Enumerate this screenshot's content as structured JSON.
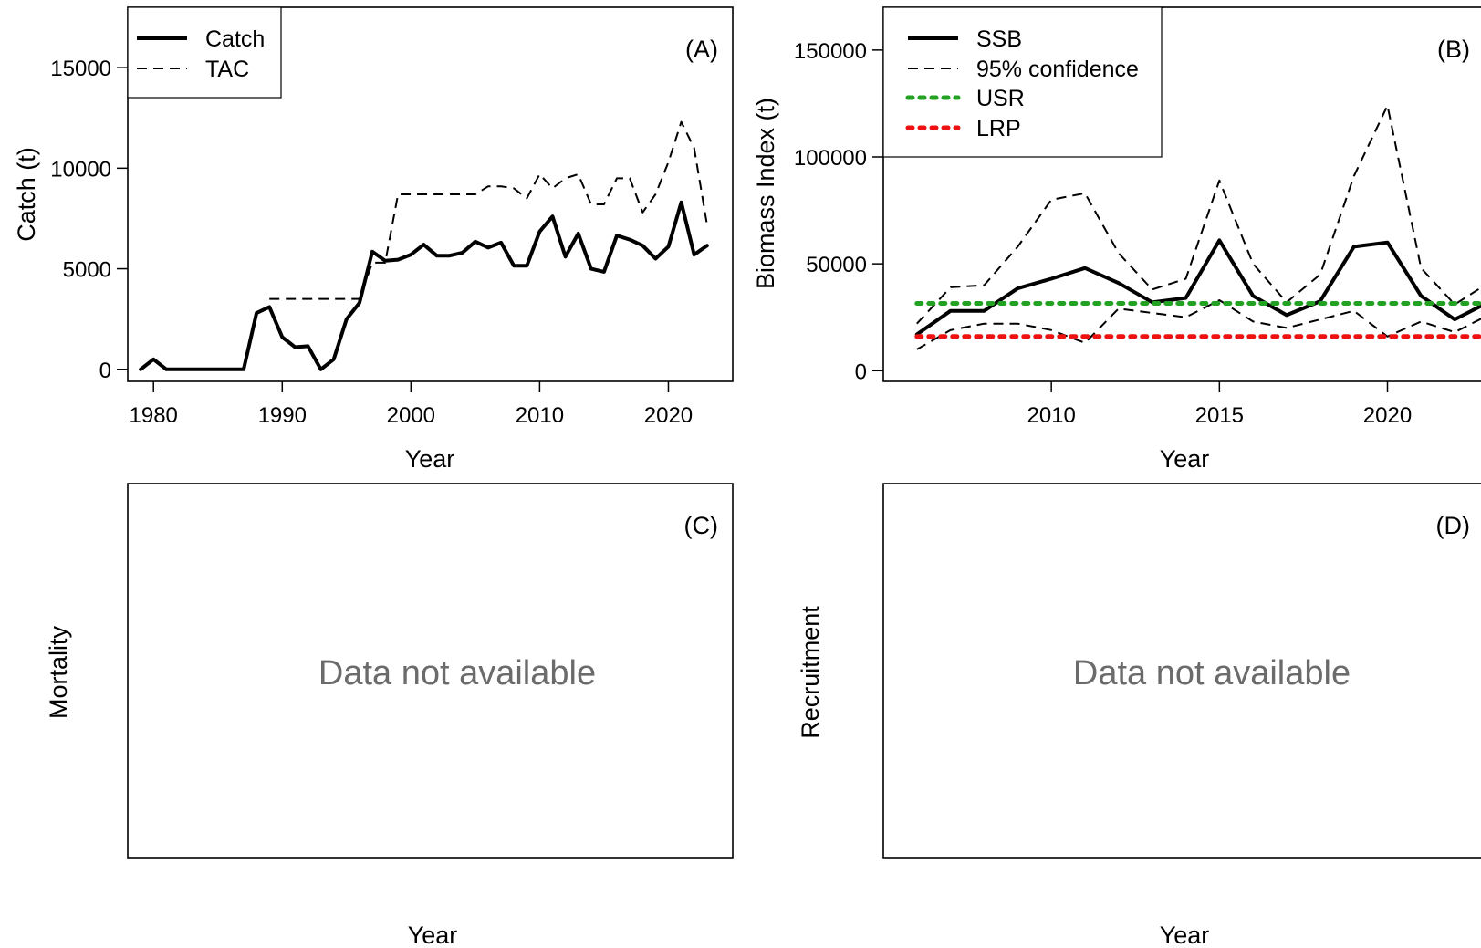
{
  "chart_data": [
    {
      "panel": "(A)",
      "type": "line",
      "xlabel": "Year",
      "ylabel": "Catch (t)",
      "xlim": [
        1978,
        2025
      ],
      "ylim": [
        -600,
        18000
      ],
      "xticks": [
        1980,
        1990,
        2000,
        2010,
        2020
      ],
      "yticks": [
        0,
        5000,
        10000,
        15000
      ],
      "legend": {
        "placement": "top-left",
        "entries": [
          "Catch",
          "TAC"
        ]
      },
      "series": [
        {
          "name": "Catch",
          "style": "solid",
          "color": "#000000",
          "x": [
            1979,
            1980,
            1981,
            1982,
            1983,
            1984,
            1985,
            1986,
            1987,
            1988,
            1989,
            1990,
            1991,
            1992,
            1993,
            1994,
            1995,
            1996,
            1997,
            1998,
            1999,
            2000,
            2001,
            2002,
            2003,
            2004,
            2005,
            2006,
            2007,
            2008,
            2009,
            2010,
            2011,
            2012,
            2013,
            2014,
            2015,
            2016,
            2017,
            2018,
            2019,
            2020,
            2021,
            2022,
            2023
          ],
          "values": [
            0,
            500,
            0,
            0,
            0,
            0,
            0,
            0,
            0,
            2800,
            3100,
            1600,
            1100,
            1150,
            0,
            500,
            2500,
            3300,
            5850,
            5400,
            5450,
            5700,
            6200,
            5650,
            5650,
            5800,
            6350,
            6050,
            6300,
            5150,
            5150,
            6850,
            7600,
            5600,
            6750,
            5000,
            4850,
            6650,
            6450,
            6150,
            5500,
            6100,
            8300,
            5700,
            6150
          ]
        },
        {
          "name": "TAC",
          "style": "dashed",
          "color": "#000000",
          "x": [
            1989,
            1990,
            1991,
            1992,
            1993,
            1994,
            1995,
            1996,
            1997,
            1998,
            1999,
            2000,
            2001,
            2002,
            2003,
            2004,
            2005,
            2006,
            2007,
            2008,
            2009,
            2010,
            2011,
            2012,
            2013,
            2014,
            2015,
            2016,
            2017,
            2018,
            2019,
            2020,
            2021,
            2022,
            2023
          ],
          "values": [
            3500,
            3500,
            3500,
            3500,
            3500,
            3500,
            3500,
            3500,
            5300,
            5300,
            8700,
            8700,
            8700,
            8700,
            8700,
            8700,
            8700,
            9100,
            9100,
            9000,
            8500,
            9700,
            9000,
            9500,
            9700,
            8200,
            8200,
            9500,
            9500,
            7800,
            8700,
            10300,
            12300,
            11000,
            7200
          ]
        }
      ]
    },
    {
      "panel": "(B)",
      "type": "line",
      "xlabel": "Year",
      "ylabel": "Biomass Index (t)",
      "xlim": [
        2005,
        2023
      ],
      "ylim": [
        -5000,
        170000
      ],
      "xticks": [
        2010,
        2015,
        2020
      ],
      "yticks": [
        0,
        50000,
        100000,
        150000
      ],
      "legend": {
        "placement": "top-left",
        "entries": [
          "SSB",
          "95% confidence",
          "USR",
          "LRP"
        ]
      },
      "series": [
        {
          "name": "SSB",
          "style": "solid",
          "color": "#000000",
          "x": [
            2006,
            2007,
            2008,
            2009,
            2010,
            2011,
            2012,
            2013,
            2014,
            2015,
            2016,
            2017,
            2018,
            2019,
            2020,
            2021,
            2022,
            2023
          ],
          "values": [
            17000,
            28000,
            28000,
            38500,
            43000,
            48000,
            41000,
            32000,
            34000,
            61000,
            35000,
            26000,
            32500,
            58000,
            60000,
            35000,
            24000,
            32000
          ]
        },
        {
          "name": "95% confidence",
          "style": "dashed",
          "color": "#000000",
          "x": [
            2006,
            2007,
            2008,
            2009,
            2010,
            2011,
            2012,
            2013,
            2014,
            2015,
            2016,
            2017,
            2018,
            2019,
            2020,
            2021,
            2022,
            2023
          ],
          "values": [
            22000,
            39000,
            40000,
            58000,
            80000,
            83000,
            55000,
            38000,
            43000,
            89000,
            50000,
            32000,
            45000,
            91000,
            124000,
            48000,
            31000,
            41000
          ]
        },
        {
          "name": "95% confidence",
          "style": "dashed",
          "color": "#000000",
          "x": [
            2006,
            2007,
            2008,
            2009,
            2010,
            2011,
            2012,
            2013,
            2014,
            2015,
            2016,
            2017,
            2018,
            2019,
            2020,
            2021,
            2022,
            2023
          ],
          "values": [
            10000,
            19000,
            22000,
            22000,
            19000,
            13000,
            29000,
            27000,
            25000,
            33000,
            23000,
            20000,
            24000,
            28000,
            16000,
            23000,
            18000,
            26000
          ]
        },
        {
          "name": "USR",
          "style": "dotted",
          "color": "#22a122",
          "x": [
            2006,
            2023
          ],
          "values": [
            31500,
            31500
          ]
        },
        {
          "name": "LRP",
          "style": "dotted",
          "color": "#ee1111",
          "x": [
            2006,
            2023
          ],
          "values": [
            16000,
            16000
          ]
        }
      ]
    },
    {
      "panel": "(C)",
      "type": "line",
      "xlabel": "Year",
      "ylabel": "Mortality",
      "message": "Data not available",
      "series": []
    },
    {
      "panel": "(D)",
      "type": "line",
      "xlabel": "Year",
      "ylabel": "Recruitment",
      "message": "Data not available",
      "series": []
    }
  ]
}
